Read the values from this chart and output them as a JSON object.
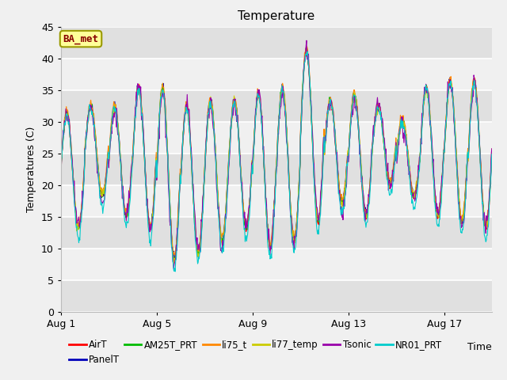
{
  "title": "Temperature",
  "xlabel": "Time",
  "ylabel": "Temperatures (C)",
  "ylim": [
    0,
    45
  ],
  "yticks": [
    0,
    5,
    10,
    15,
    20,
    25,
    30,
    35,
    40,
    45
  ],
  "num_days": 18,
  "points_per_day": 48,
  "series_colors": {
    "AirT": "#ff0000",
    "PanelT": "#0000bb",
    "AM25T_PRT": "#00bb00",
    "li75_t": "#ff8800",
    "li77_temp": "#cccc00",
    "Tsonic": "#9900aa",
    "NR01_PRT": "#00cccc"
  },
  "legend_box_facecolor": "#ffff99",
  "legend_box_edgecolor": "#999900",
  "legend_text_color": "#880000",
  "ba_met_text": "BA_met",
  "background_plot": "#e8e8e8",
  "background_fig": "#f0f0f0",
  "band_light": "#f0f0f0",
  "band_dark": "#e0e0e0",
  "xtick_labels": [
    "Aug 1",
    "Aug 5",
    "Aug 9",
    "Aug 13",
    "Aug 17"
  ],
  "xtick_positions": [
    0,
    4,
    8,
    12,
    16
  ],
  "figsize": [
    6.4,
    4.8
  ],
  "dpi": 100
}
